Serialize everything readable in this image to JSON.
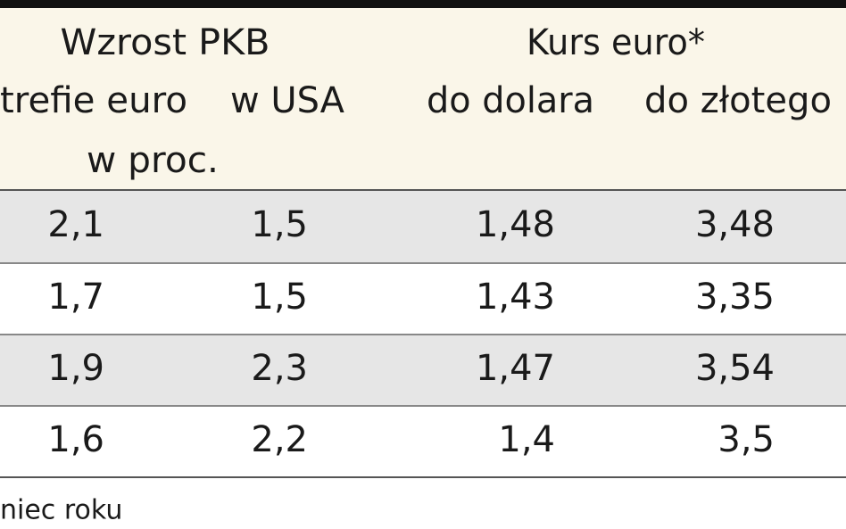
{
  "header": {
    "groups": [
      "Wzrost PKB",
      "Kurs euro*"
    ],
    "columns": [
      "trefie euro",
      "w USA",
      "do dolara",
      "do złotego"
    ],
    "unit": "w proc."
  },
  "table": {
    "rows": [
      [
        "2,1",
        "1,5",
        "1,48",
        "3,48"
      ],
      [
        "1,7",
        "1,5",
        "1,43",
        "3,35"
      ],
      [
        "1,9",
        "2,3",
        "1,47",
        "3,54"
      ],
      [
        "1,6",
        "2,2",
        "1,4",
        "3,5"
      ]
    ]
  },
  "footer": {
    "note": "niec roku"
  }
}
